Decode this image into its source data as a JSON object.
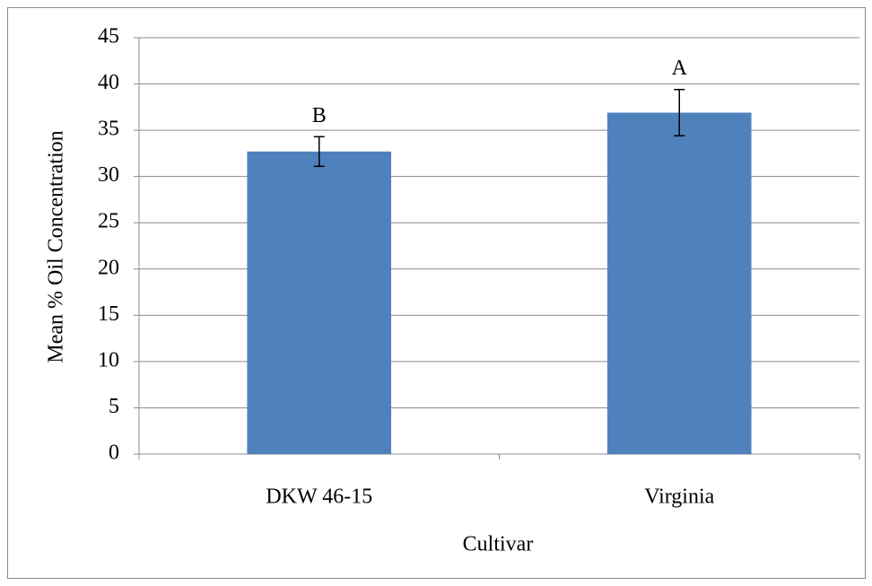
{
  "chart_data": {
    "type": "bar",
    "x_label": "Cultivar",
    "y_label": "Mean % Oil Concentration",
    "categories": [
      "DKW 46-15",
      "Virginia"
    ],
    "values": [
      32.7,
      36.9
    ],
    "errors": [
      1.6,
      2.5
    ],
    "annotations": [
      "B",
      "A"
    ],
    "color": "#4f81bd",
    "ylim": [
      0,
      45
    ],
    "yticks": [
      0,
      5,
      10,
      15,
      20,
      25,
      30,
      35,
      40,
      45
    ],
    "grid": true
  }
}
